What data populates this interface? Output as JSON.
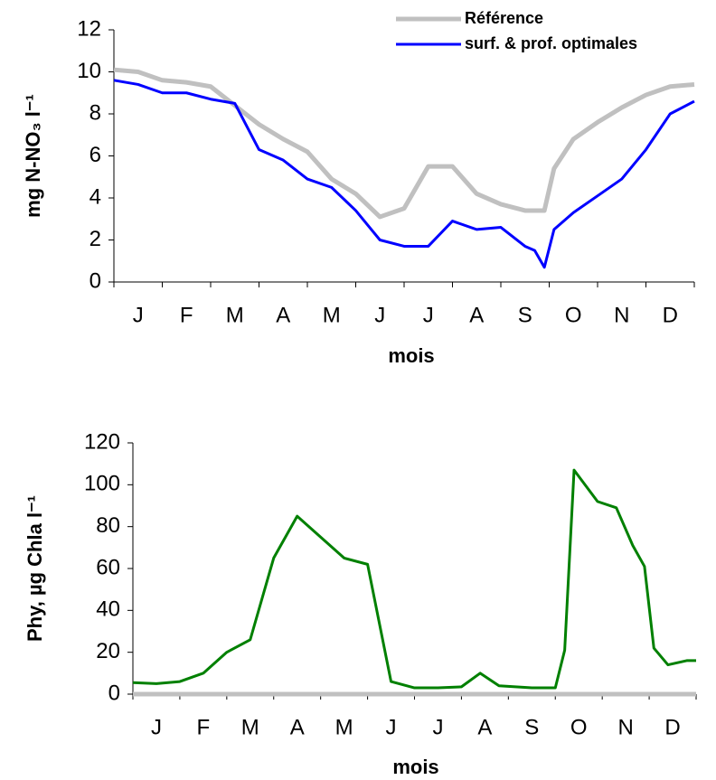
{
  "chart_data": [
    {
      "type": "line",
      "x_label": "mois",
      "y_label": "mg N-NO₃ l⁻¹",
      "categories": [
        "J",
        "F",
        "M",
        "A",
        "M",
        "J",
        "J",
        "A",
        "S",
        "O",
        "N",
        "D"
      ],
      "xlim": [
        0,
        12
      ],
      "ylim": [
        0,
        12
      ],
      "yticks": [
        0,
        2,
        4,
        6,
        8,
        10,
        12
      ],
      "legend": "upper right",
      "series": [
        {
          "name": "Référence",
          "color": "#c0c0c0",
          "x": [
            0,
            0.5,
            1,
            1.5,
            2,
            2.5,
            3,
            3.5,
            4,
            4.5,
            5,
            5.5,
            6,
            6.5,
            7,
            7.5,
            8,
            8.5,
            8.9,
            9.1,
            9.5,
            10,
            10.5,
            11,
            11.5,
            12
          ],
          "values": [
            10.1,
            10.0,
            9.6,
            9.5,
            9.3,
            8.4,
            7.5,
            6.8,
            6.2,
            4.9,
            4.2,
            3.1,
            3.5,
            5.5,
            5.5,
            4.2,
            3.7,
            3.4,
            3.4,
            5.4,
            6.8,
            7.6,
            8.3,
            8.9,
            9.3,
            9.4
          ]
        },
        {
          "name": "surf. & prof. optimales",
          "color": "#0000ff",
          "x": [
            0,
            0.5,
            1,
            1.5,
            2,
            2.5,
            3,
            3.5,
            4,
            4.5,
            5,
            5.5,
            6,
            6.5,
            7,
            7.5,
            8,
            8.5,
            8.7,
            8.9,
            9.1,
            9.5,
            10,
            10.5,
            11,
            11.5,
            12
          ],
          "values": [
            9.6,
            9.4,
            9.0,
            9.0,
            8.7,
            8.5,
            6.3,
            5.8,
            4.9,
            4.5,
            3.4,
            2.0,
            1.7,
            1.7,
            2.9,
            2.5,
            2.6,
            1.7,
            1.5,
            0.7,
            2.5,
            3.3,
            4.1,
            4.9,
            6.3,
            8.0,
            8.6
          ]
        }
      ]
    },
    {
      "type": "line",
      "x_label": "mois",
      "y_label": "Phy, µg Chla l⁻¹",
      "categories": [
        "J",
        "F",
        "M",
        "A",
        "M",
        "J",
        "J",
        "A",
        "S",
        "O",
        "N",
        "D"
      ],
      "xlim": [
        0,
        12
      ],
      "ylim": [
        0,
        120
      ],
      "yticks": [
        0,
        20,
        40,
        60,
        80,
        100,
        120
      ],
      "series": [
        {
          "color": "#c0c0c0",
          "x": [
            0,
            12
          ],
          "values": [
            0,
            0
          ]
        },
        {
          "color": "#008000",
          "x": [
            0,
            0.5,
            1,
            1.5,
            2,
            2.5,
            3,
            3.5,
            4,
            4.5,
            5,
            5.5,
            6,
            6.5,
            7,
            7.4,
            7.8,
            8.5,
            9,
            9.2,
            9.4,
            9.9,
            10.3,
            10.65,
            10.9,
            11.1,
            11.4,
            11.8,
            12
          ],
          "values": [
            5.5,
            5,
            6,
            10,
            20,
            26,
            65,
            85,
            75,
            65,
            62,
            6,
            3,
            3,
            3.5,
            10,
            4,
            3,
            3,
            21,
            107,
            92,
            89,
            71,
            61,
            22,
            14,
            16,
            16
          ]
        }
      ]
    }
  ]
}
